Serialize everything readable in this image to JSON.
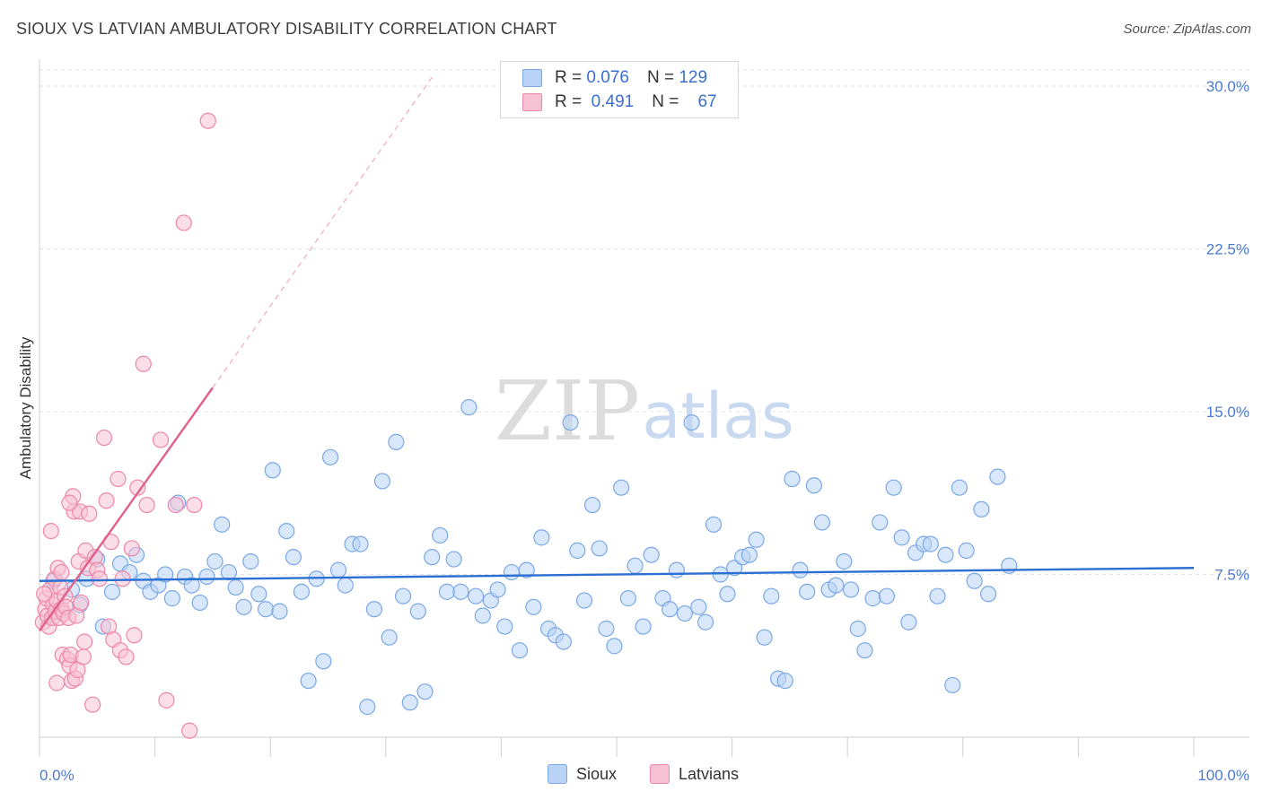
{
  "chart_data": {
    "type": "scatter",
    "title": "SIOUX VS LATVIAN AMBULATORY DISABILITY CORRELATION CHART",
    "source": "Source: ZipAtlas.com",
    "xlabel": "",
    "ylabel": "Ambulatory Disability",
    "xlim": [
      0,
      100
    ],
    "ylim": [
      0,
      30
    ],
    "y_ticks": [
      {
        "value": 7.5,
        "label": "7.5%"
      },
      {
        "value": 15.0,
        "label": "15.0%"
      },
      {
        "value": 22.5,
        "label": "22.5%"
      },
      {
        "value": 30.0,
        "label": "30.0%"
      }
    ],
    "x_tick_labels": {
      "min": "0.0%",
      "max": "100.0%"
    },
    "watermark": "ZIPatlas",
    "legend": [
      {
        "name": "Sioux",
        "r_label": "R =",
        "r_value": "0.076",
        "n_label": "N =",
        "n_value": "129",
        "color": "#7aa8e6",
        "fill": "#b8d3f5"
      },
      {
        "name": "Latvians",
        "r_label": "R =",
        "r_value": "0.491",
        "n_label": "N =",
        "n_value": "67",
        "color": "#ee86a8",
        "fill": "#f7c3d4"
      }
    ],
    "series": [
      {
        "name": "Sioux",
        "color": "#7aa8e6",
        "trend": {
          "x0": 0,
          "y0": 7.2,
          "x1": 100,
          "y1": 7.8,
          "color": "#2a6fd1"
        },
        "points": [
          [
            1.2,
            7.2
          ],
          [
            2.8,
            6.8
          ],
          [
            3.5,
            6.1
          ],
          [
            4.1,
            7.3
          ],
          [
            5.0,
            8.2
          ],
          [
            5.5,
            5.1
          ],
          [
            6.3,
            6.7
          ],
          [
            7.0,
            8.0
          ],
          [
            7.8,
            7.6
          ],
          [
            8.4,
            8.4
          ],
          [
            9.0,
            7.2
          ],
          [
            9.6,
            6.7
          ],
          [
            10.3,
            7.0
          ],
          [
            10.9,
            7.5
          ],
          [
            11.5,
            6.4
          ],
          [
            12.0,
            10.8
          ],
          [
            12.6,
            7.4
          ],
          [
            13.2,
            7.0
          ],
          [
            13.9,
            6.2
          ],
          [
            14.5,
            7.4
          ],
          [
            15.2,
            8.1
          ],
          [
            15.8,
            9.8
          ],
          [
            16.4,
            7.6
          ],
          [
            17.0,
            6.9
          ],
          [
            17.7,
            6.0
          ],
          [
            18.3,
            8.1
          ],
          [
            19.0,
            6.6
          ],
          [
            19.6,
            5.9
          ],
          [
            20.2,
            12.3
          ],
          [
            20.8,
            5.8
          ],
          [
            21.4,
            9.5
          ],
          [
            22.0,
            8.3
          ],
          [
            22.7,
            6.7
          ],
          [
            23.3,
            2.6
          ],
          [
            24.0,
            7.3
          ],
          [
            24.6,
            3.5
          ],
          [
            25.2,
            12.9
          ],
          [
            25.9,
            7.7
          ],
          [
            26.5,
            7.0
          ],
          [
            27.1,
            8.9
          ],
          [
            27.8,
            8.9
          ],
          [
            28.4,
            1.4
          ],
          [
            29.0,
            5.9
          ],
          [
            29.7,
            11.8
          ],
          [
            30.3,
            4.6
          ],
          [
            30.9,
            13.6
          ],
          [
            31.5,
            6.5
          ],
          [
            32.1,
            1.6
          ],
          [
            32.8,
            5.8
          ],
          [
            33.4,
            2.1
          ],
          [
            34.0,
            8.3
          ],
          [
            34.7,
            9.3
          ],
          [
            35.3,
            6.7
          ],
          [
            35.9,
            8.2
          ],
          [
            36.5,
            6.7
          ],
          [
            37.2,
            15.2
          ],
          [
            37.8,
            6.5
          ],
          [
            38.4,
            5.6
          ],
          [
            39.1,
            6.3
          ],
          [
            39.7,
            6.8
          ],
          [
            40.3,
            5.1
          ],
          [
            40.9,
            7.6
          ],
          [
            41.6,
            4.0
          ],
          [
            42.2,
            7.7
          ],
          [
            42.8,
            6.0
          ],
          [
            43.5,
            9.2
          ],
          [
            44.1,
            5.0
          ],
          [
            44.7,
            4.7
          ],
          [
            45.4,
            4.4
          ],
          [
            46.0,
            14.5
          ],
          [
            46.6,
            8.6
          ],
          [
            47.2,
            6.3
          ],
          [
            47.9,
            10.7
          ],
          [
            48.5,
            8.7
          ],
          [
            49.1,
            5.0
          ],
          [
            49.8,
            4.2
          ],
          [
            50.4,
            11.5
          ],
          [
            51.0,
            6.4
          ],
          [
            51.6,
            7.9
          ],
          [
            52.3,
            5.1
          ],
          [
            53.0,
            8.4
          ],
          [
            54.0,
            6.4
          ],
          [
            54.6,
            5.9
          ],
          [
            55.2,
            7.7
          ],
          [
            55.9,
            5.7
          ],
          [
            56.5,
            14.5
          ],
          [
            57.1,
            6.0
          ],
          [
            57.7,
            5.3
          ],
          [
            58.4,
            9.8
          ],
          [
            59.0,
            7.5
          ],
          [
            59.6,
            6.6
          ],
          [
            60.2,
            7.8
          ],
          [
            60.9,
            8.3
          ],
          [
            61.5,
            8.4
          ],
          [
            62.1,
            9.1
          ],
          [
            62.8,
            4.6
          ],
          [
            63.4,
            6.5
          ],
          [
            64.0,
            2.7
          ],
          [
            64.6,
            2.6
          ],
          [
            65.2,
            11.9
          ],
          [
            65.9,
            7.7
          ],
          [
            66.5,
            6.7
          ],
          [
            67.1,
            11.6
          ],
          [
            67.8,
            9.9
          ],
          [
            68.4,
            6.8
          ],
          [
            69.0,
            7.0
          ],
          [
            69.7,
            8.1
          ],
          [
            70.3,
            6.8
          ],
          [
            70.9,
            5.0
          ],
          [
            71.5,
            4.0
          ],
          [
            72.2,
            6.4
          ],
          [
            72.8,
            9.9
          ],
          [
            73.4,
            6.5
          ],
          [
            74.0,
            11.5
          ],
          [
            74.7,
            9.2
          ],
          [
            75.3,
            5.3
          ],
          [
            75.9,
            8.5
          ],
          [
            76.6,
            8.9
          ],
          [
            77.2,
            8.9
          ],
          [
            77.8,
            6.5
          ],
          [
            78.5,
            8.4
          ],
          [
            79.1,
            2.4
          ],
          [
            79.7,
            11.5
          ],
          [
            80.3,
            8.6
          ],
          [
            81.0,
            7.2
          ],
          [
            81.6,
            10.5
          ],
          [
            82.2,
            6.6
          ],
          [
            83.0,
            12.0
          ],
          [
            84.0,
            7.9
          ]
        ]
      },
      {
        "name": "Latvians",
        "color": "#ee86a8",
        "trend": {
          "x0": 0,
          "y0": 4.9,
          "x1": 15.0,
          "y1": 16.1,
          "color": "#e0608a"
        },
        "trend_extended": {
          "x0": 15.0,
          "y0": 16.1,
          "x1": 34.0,
          "y1": 30.4
        },
        "points": [
          [
            0.3,
            5.3
          ],
          [
            0.5,
            5.9
          ],
          [
            0.6,
            6.4
          ],
          [
            0.7,
            5.6
          ],
          [
            0.8,
            5.1
          ],
          [
            0.9,
            6.8
          ],
          [
            1.0,
            9.5
          ],
          [
            1.1,
            5.5
          ],
          [
            1.2,
            6.1
          ],
          [
            1.3,
            7.3
          ],
          [
            1.4,
            5.8
          ],
          [
            1.5,
            6.3
          ],
          [
            1.6,
            7.8
          ],
          [
            1.7,
            5.5
          ],
          [
            1.8,
            6.9
          ],
          [
            1.9,
            5.9
          ],
          [
            2.0,
            3.8
          ],
          [
            2.1,
            5.7
          ],
          [
            2.2,
            6.5
          ],
          [
            2.3,
            6.0
          ],
          [
            2.4,
            3.6
          ],
          [
            2.5,
            5.5
          ],
          [
            2.6,
            3.3
          ],
          [
            2.7,
            3.8
          ],
          [
            2.8,
            2.6
          ],
          [
            2.9,
            11.1
          ],
          [
            3.0,
            10.4
          ],
          [
            3.1,
            2.7
          ],
          [
            3.2,
            5.6
          ],
          [
            3.3,
            3.1
          ],
          [
            3.4,
            8.1
          ],
          [
            3.5,
            10.4
          ],
          [
            3.6,
            6.2
          ],
          [
            3.8,
            3.7
          ],
          [
            4.0,
            8.6
          ],
          [
            4.2,
            7.8
          ],
          [
            4.3,
            10.3
          ],
          [
            4.6,
            1.5
          ],
          [
            4.8,
            8.3
          ],
          [
            5.0,
            7.7
          ],
          [
            5.2,
            7.3
          ],
          [
            5.6,
            13.8
          ],
          [
            5.8,
            10.9
          ],
          [
            6.0,
            5.1
          ],
          [
            6.2,
            9.0
          ],
          [
            6.4,
            4.5
          ],
          [
            6.8,
            11.9
          ],
          [
            7.0,
            4.0
          ],
          [
            7.2,
            7.3
          ],
          [
            7.5,
            3.7
          ],
          [
            8.0,
            8.7
          ],
          [
            8.2,
            4.7
          ],
          [
            8.5,
            11.5
          ],
          [
            9.0,
            17.2
          ],
          [
            9.3,
            10.7
          ],
          [
            10.5,
            13.7
          ],
          [
            11.0,
            1.7
          ],
          [
            11.8,
            10.7
          ],
          [
            12.5,
            23.7
          ],
          [
            13.0,
            0.3
          ],
          [
            13.4,
            10.7
          ],
          [
            14.6,
            28.4
          ],
          [
            3.9,
            4.4
          ],
          [
            1.9,
            7.6
          ],
          [
            2.6,
            10.8
          ],
          [
            0.4,
            6.6
          ],
          [
            1.5,
            2.5
          ]
        ]
      }
    ]
  }
}
